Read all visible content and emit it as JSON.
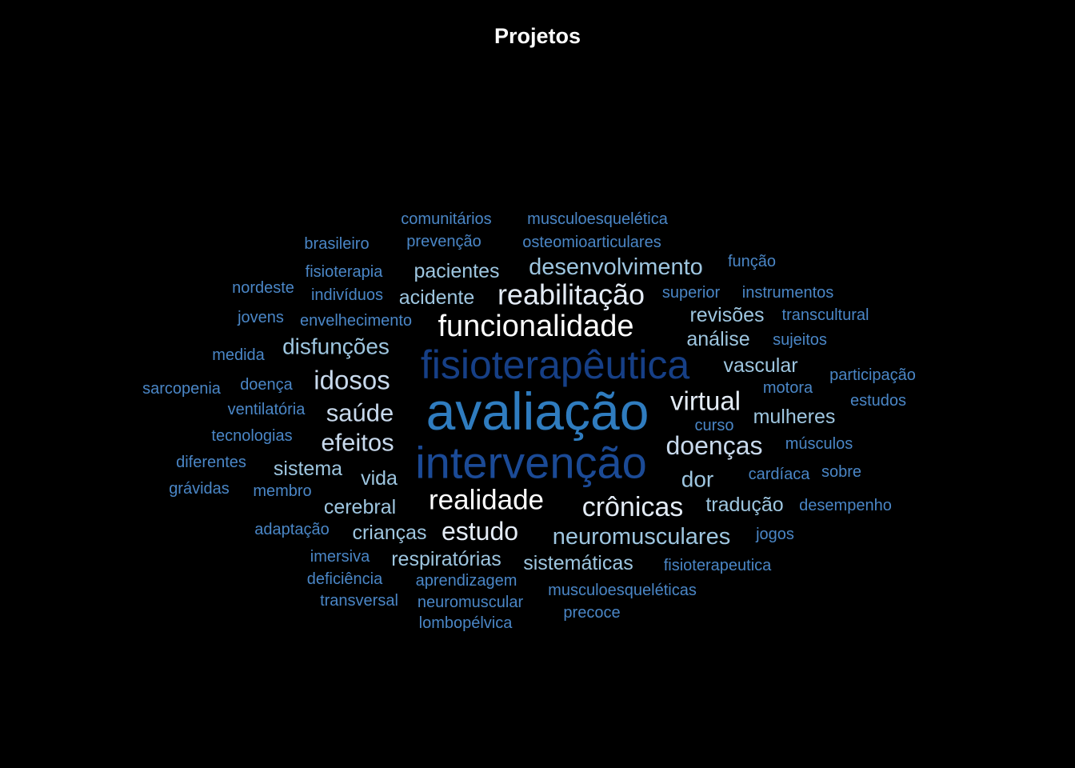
{
  "chart_data": {
    "type": "wordcloud",
    "title": "Projetos",
    "colors": {
      "background": "#000000",
      "white": "#ffffff",
      "pale": "#e4ecf6",
      "light": "#c8d9ec",
      "sky": "#9ec6e0",
      "mid": "#6ba6d4",
      "medium": "#4a86c6",
      "steel": "#3d7ac0",
      "blue": "#2e6db3",
      "deep": "#2f7cbf",
      "navy": "#1b4a96",
      "dark": "#163f86"
    },
    "words": [
      {
        "text": "avaliação",
        "weight": 66,
        "color": "deep"
      },
      {
        "text": "intervenção",
        "weight": 56,
        "color": "navy"
      },
      {
        "text": "fisioterapêutica",
        "weight": 50,
        "color": "dark"
      },
      {
        "text": "funcionalidade",
        "weight": 38,
        "color": "white"
      },
      {
        "text": "reabilitação",
        "weight": 36,
        "color": "pale"
      },
      {
        "text": "realidade",
        "weight": 35,
        "color": "white"
      },
      {
        "text": "crônicas",
        "weight": 34,
        "color": "pale"
      },
      {
        "text": "virtual",
        "weight": 33,
        "color": "pale"
      },
      {
        "text": "idosos",
        "weight": 33,
        "color": "light"
      },
      {
        "text": "estudo",
        "weight": 32,
        "color": "pale"
      },
      {
        "text": "doenças",
        "weight": 32,
        "color": "light"
      },
      {
        "text": "efeitos",
        "weight": 31,
        "color": "light"
      },
      {
        "text": "saúde",
        "weight": 31,
        "color": "light"
      },
      {
        "text": "neuromusculares",
        "weight": 29,
        "color": "sky"
      },
      {
        "text": "desenvolvimento",
        "weight": 29,
        "color": "sky"
      },
      {
        "text": "disfunções",
        "weight": 28,
        "color": "sky"
      },
      {
        "text": "dor",
        "weight": 28,
        "color": "sky"
      },
      {
        "text": "pacientes",
        "weight": 25,
        "color": "sky"
      },
      {
        "text": "sistemáticas",
        "weight": 25,
        "color": "sky"
      },
      {
        "text": "mulheres",
        "weight": 25,
        "color": "sky"
      },
      {
        "text": "análise",
        "weight": 25,
        "color": "sky"
      },
      {
        "text": "revisões",
        "weight": 25,
        "color": "sky"
      },
      {
        "text": "vascular",
        "weight": 25,
        "color": "sky"
      },
      {
        "text": "acidente",
        "weight": 25,
        "color": "sky"
      },
      {
        "text": "sistema",
        "weight": 25,
        "color": "sky"
      },
      {
        "text": "cerebral",
        "weight": 25,
        "color": "sky"
      },
      {
        "text": "crianças",
        "weight": 25,
        "color": "sky"
      },
      {
        "text": "respiratórias",
        "weight": 25,
        "color": "sky"
      },
      {
        "text": "tradução",
        "weight": 25,
        "color": "sky"
      },
      {
        "text": "vida",
        "weight": 25,
        "color": "sky"
      },
      {
        "text": "comunitários",
        "weight": 20,
        "color": "medium"
      },
      {
        "text": "musculoesquelética",
        "weight": 20,
        "color": "medium"
      },
      {
        "text": "brasileiro",
        "weight": 20,
        "color": "medium"
      },
      {
        "text": "prevenção",
        "weight": 20,
        "color": "medium"
      },
      {
        "text": "osteomioarticulares",
        "weight": 20,
        "color": "medium"
      },
      {
        "text": "função",
        "weight": 20,
        "color": "medium"
      },
      {
        "text": "fisioterapia",
        "weight": 20,
        "color": "medium"
      },
      {
        "text": "nordeste",
        "weight": 20,
        "color": "medium"
      },
      {
        "text": "indivíduos",
        "weight": 20,
        "color": "medium"
      },
      {
        "text": "superior",
        "weight": 20,
        "color": "medium"
      },
      {
        "text": "instrumentos",
        "weight": 20,
        "color": "medium"
      },
      {
        "text": "jovens",
        "weight": 20,
        "color": "medium"
      },
      {
        "text": "envelhecimento",
        "weight": 20,
        "color": "medium"
      },
      {
        "text": "transcultural",
        "weight": 20,
        "color": "medium"
      },
      {
        "text": "medida",
        "weight": 20,
        "color": "medium"
      },
      {
        "text": "sujeitos",
        "weight": 20,
        "color": "medium"
      },
      {
        "text": "participação",
        "weight": 20,
        "color": "medium"
      },
      {
        "text": "sarcopenia",
        "weight": 20,
        "color": "medium"
      },
      {
        "text": "doença",
        "weight": 20,
        "color": "medium"
      },
      {
        "text": "motora",
        "weight": 20,
        "color": "medium"
      },
      {
        "text": "estudos",
        "weight": 20,
        "color": "medium"
      },
      {
        "text": "ventilatória",
        "weight": 20,
        "color": "medium"
      },
      {
        "text": "curso",
        "weight": 20,
        "color": "medium"
      },
      {
        "text": "tecnologias",
        "weight": 20,
        "color": "medium"
      },
      {
        "text": "músculos",
        "weight": 20,
        "color": "medium"
      },
      {
        "text": "diferentes",
        "weight": 20,
        "color": "medium"
      },
      {
        "text": "cardíaca",
        "weight": 20,
        "color": "medium"
      },
      {
        "text": "sobre",
        "weight": 20,
        "color": "medium"
      },
      {
        "text": "grávidas",
        "weight": 20,
        "color": "medium"
      },
      {
        "text": "membro",
        "weight": 20,
        "color": "medium"
      },
      {
        "text": "desempenho",
        "weight": 20,
        "color": "medium"
      },
      {
        "text": "adaptação",
        "weight": 20,
        "color": "medium"
      },
      {
        "text": "jogos",
        "weight": 20,
        "color": "medium"
      },
      {
        "text": "imersiva",
        "weight": 20,
        "color": "medium"
      },
      {
        "text": "fisioterapeutica",
        "weight": 20,
        "color": "medium"
      },
      {
        "text": "deficiência",
        "weight": 20,
        "color": "medium"
      },
      {
        "text": "aprendizagem",
        "weight": 20,
        "color": "medium"
      },
      {
        "text": "musculoesqueléticas",
        "weight": 20,
        "color": "medium"
      },
      {
        "text": "transversal",
        "weight": 20,
        "color": "medium"
      },
      {
        "text": "neuromuscular",
        "weight": 20,
        "color": "medium"
      },
      {
        "text": "precoce",
        "weight": 20,
        "color": "medium"
      },
      {
        "text": "lombopélvica",
        "weight": 20,
        "color": "medium"
      }
    ]
  }
}
